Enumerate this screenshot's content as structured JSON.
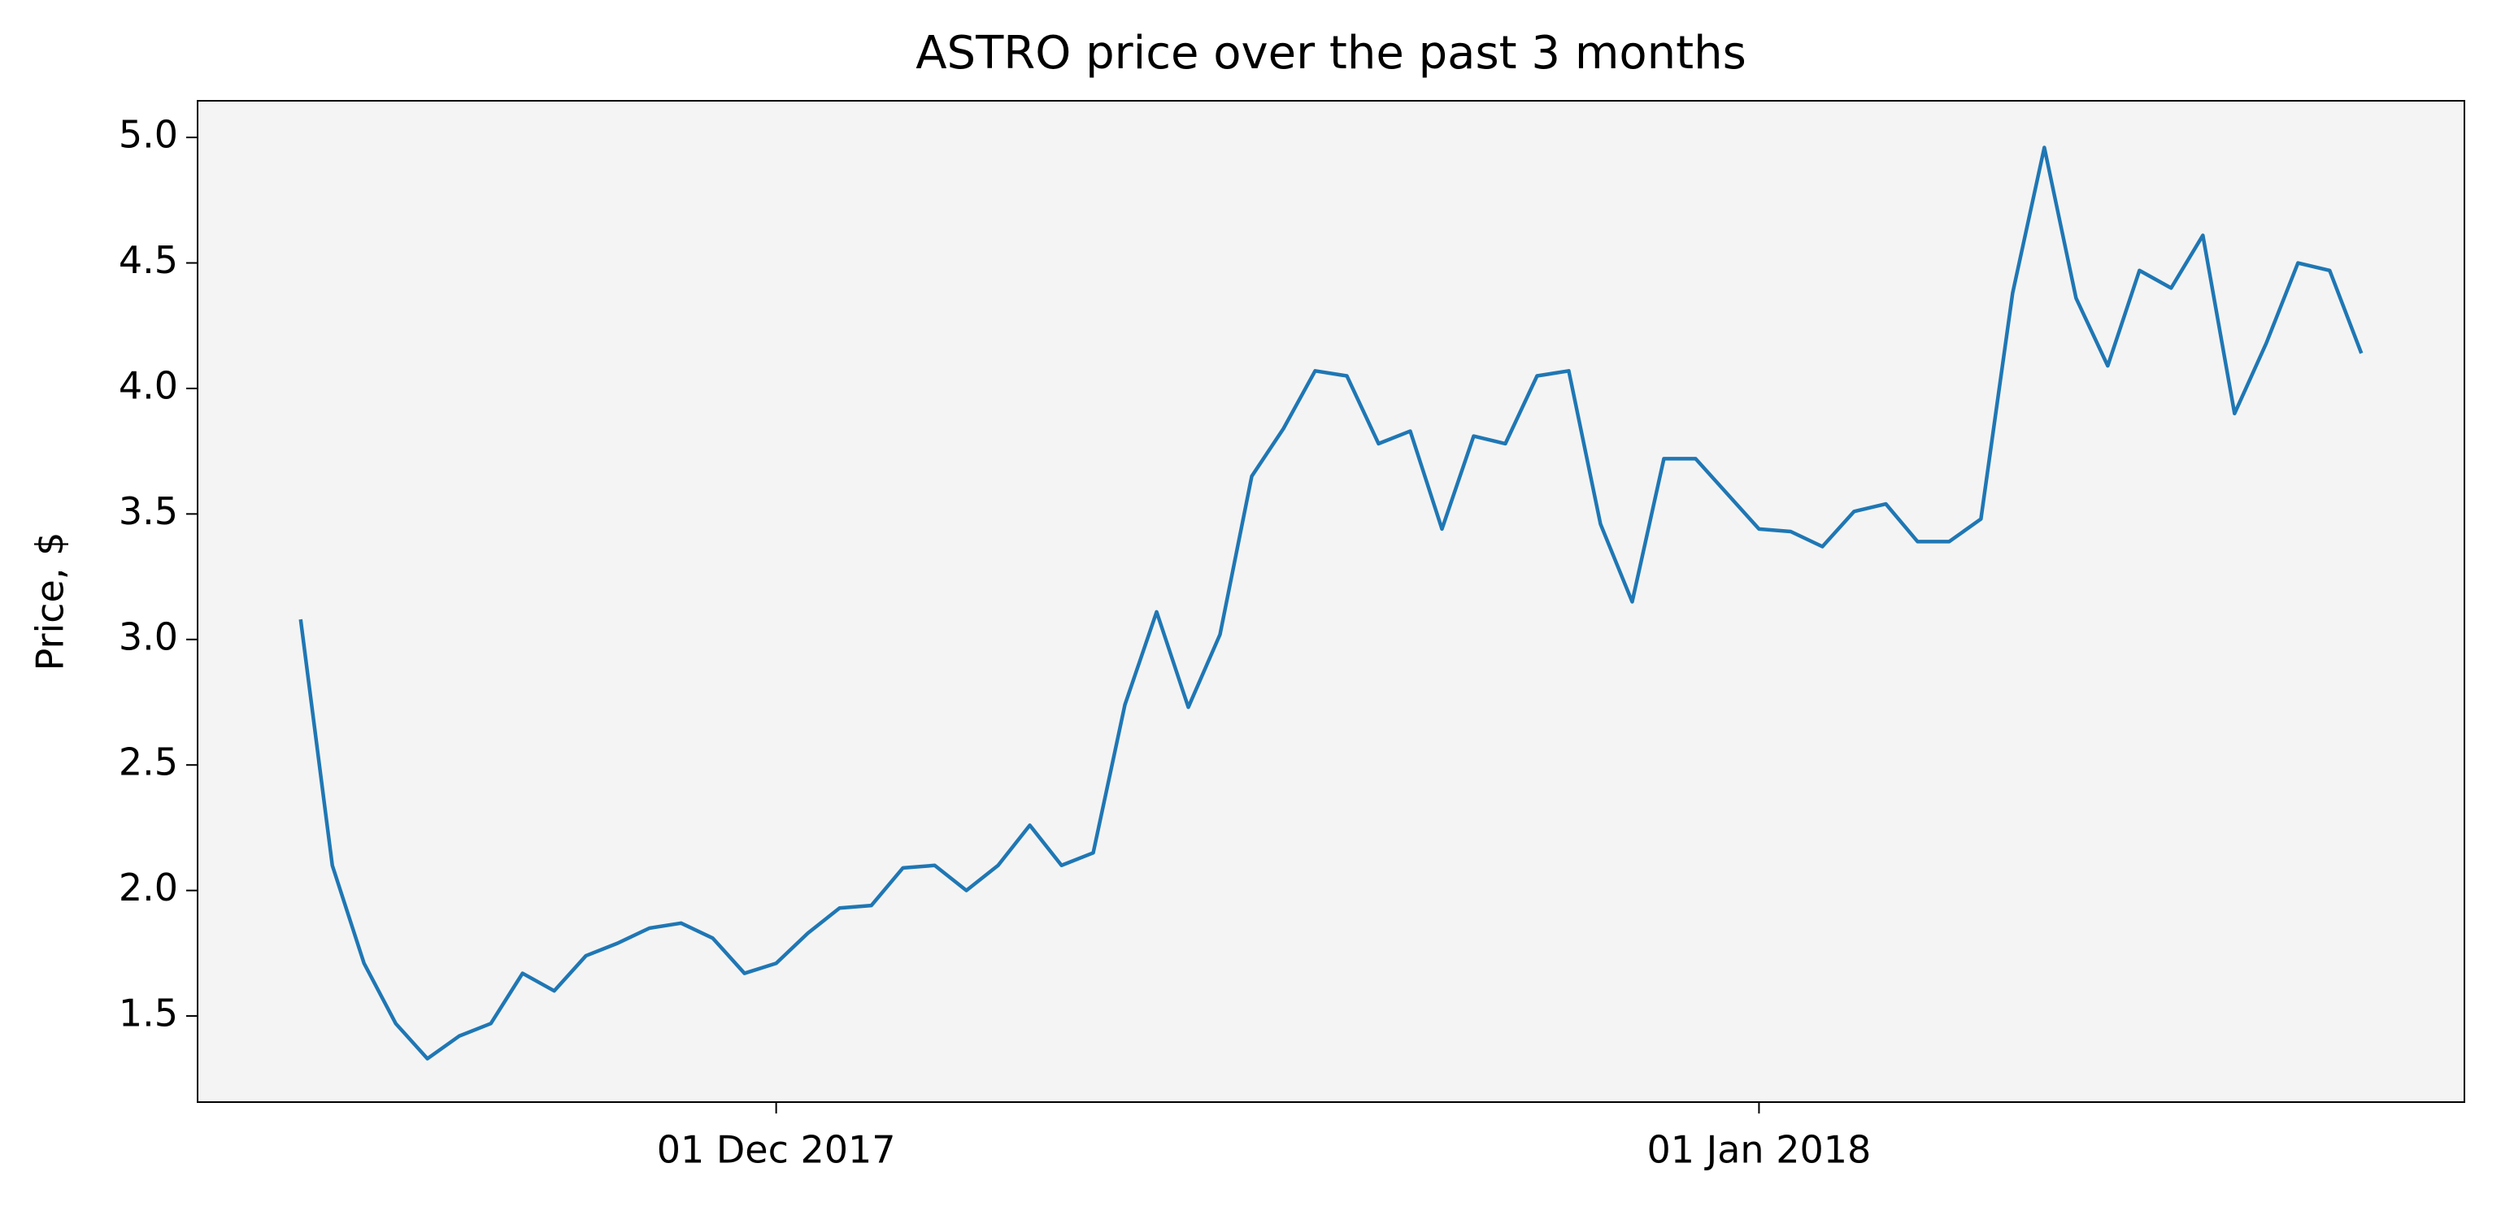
{
  "chart_data": {
    "type": "line",
    "title": "ASTRO price over the past 3 months",
    "ylabel": "Price, $",
    "x": [
      "2017-11-16",
      "2017-11-17",
      "2017-11-18",
      "2017-11-19",
      "2017-11-20",
      "2017-11-21",
      "2017-11-22",
      "2017-11-23",
      "2017-11-24",
      "2017-11-25",
      "2017-11-26",
      "2017-11-27",
      "2017-11-28",
      "2017-11-29",
      "2017-11-30",
      "2017-12-01",
      "2017-12-02",
      "2017-12-03",
      "2017-12-04",
      "2017-12-05",
      "2017-12-06",
      "2017-12-07",
      "2017-12-08",
      "2017-12-09",
      "2017-12-10",
      "2017-12-11",
      "2017-12-12",
      "2017-12-13",
      "2017-12-14",
      "2017-12-15",
      "2017-12-16",
      "2017-12-17",
      "2017-12-18",
      "2017-12-19",
      "2017-12-20",
      "2017-12-21",
      "2017-12-22",
      "2017-12-23",
      "2017-12-24",
      "2017-12-25",
      "2017-12-26",
      "2017-12-27",
      "2017-12-28",
      "2017-12-29",
      "2017-12-30",
      "2017-12-31",
      "2018-01-01",
      "2018-01-02",
      "2018-01-03",
      "2018-01-04",
      "2018-01-05",
      "2018-01-06",
      "2018-01-07",
      "2018-01-08",
      "2018-01-09",
      "2018-01-10",
      "2018-01-11",
      "2018-01-12",
      "2018-01-13",
      "2018-01-14",
      "2018-01-15",
      "2018-01-16",
      "2018-01-17",
      "2018-01-18",
      "2018-01-19",
      "2018-01-20"
    ],
    "series": [
      {
        "name": "ASTRO",
        "color": "#1f77b4",
        "values": [
          3.08,
          2.1,
          1.71,
          1.47,
          1.33,
          1.42,
          1.47,
          1.67,
          1.6,
          1.74,
          1.79,
          1.85,
          1.87,
          1.81,
          1.67,
          1.71,
          1.83,
          1.93,
          1.94,
          2.09,
          2.1,
          2.0,
          2.1,
          2.26,
          2.1,
          2.15,
          2.74,
          3.11,
          2.73,
          3.02,
          3.65,
          3.84,
          4.07,
          4.05,
          3.78,
          3.83,
          3.44,
          3.81,
          3.78,
          4.05,
          4.07,
          3.46,
          3.15,
          3.72,
          3.72,
          3.58,
          3.44,
          3.43,
          3.37,
          3.51,
          3.54,
          3.39,
          3.39,
          3.48,
          4.38,
          4.96,
          4.36,
          4.09,
          4.47,
          4.4,
          4.61,
          3.9,
          4.18,
          4.5,
          4.47,
          4.14
        ]
      }
    ],
    "xlim": [
      "2017-11-12T18:00",
      "2018-01-23T06:00"
    ],
    "xticks": [
      {
        "value": "2017-12-01",
        "label": "01 Dec 2017"
      },
      {
        "value": "2018-01-01",
        "label": "01 Jan 2018"
      }
    ],
    "ylim": [
      1.157,
      5.146
    ],
    "yticks": [
      1.5,
      {
        "value": 2,
        "label": "2.0"
      },
      2.5,
      {
        "value": 3,
        "label": "3.0"
      },
      3.5,
      {
        "value": 4,
        "label": "4.0"
      },
      4.5,
      {
        "value": 5,
        "label": "5.0"
      }
    ],
    "grid": false
  }
}
